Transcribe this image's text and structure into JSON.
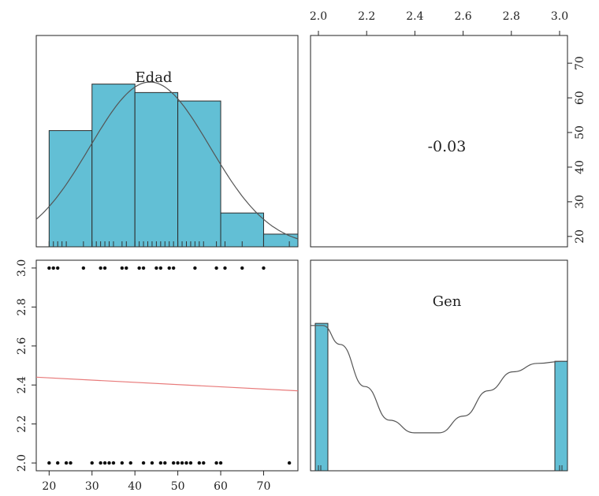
{
  "chart_data": {
    "type": "scatter",
    "title": "",
    "variables": [
      "Edad",
      "Gen"
    ],
    "colors": {
      "bar_fill": "#62bfd5",
      "bar_stroke": "#2b2b2b",
      "density": "#555555",
      "regression": "#e87a7a",
      "points": "#111111"
    },
    "axis_ticks": {
      "edad": [
        "20",
        "30",
        "40",
        "50",
        "60",
        "70"
      ],
      "gen": [
        "2.0",
        "2.2",
        "2.4",
        "2.6",
        "2.8",
        "3.0"
      ],
      "right_ticks": [
        "20",
        "30",
        "40",
        "50",
        "60",
        "70"
      ]
    },
    "diag_edad": {
      "label": "Edad",
      "xlim": [
        17,
        78
      ],
      "bins": [
        {
          "x0": 20,
          "x1": 30,
          "h": 0.55
        },
        {
          "x0": 30,
          "x1": 40,
          "h": 0.77
        },
        {
          "x0": 40,
          "x1": 50,
          "h": 0.73
        },
        {
          "x0": 50,
          "x1": 60,
          "h": 0.69
        },
        {
          "x0": 60,
          "x1": 70,
          "h": 0.16
        },
        {
          "x0": 70,
          "x1": 80,
          "h": 0.06
        }
      ],
      "density_mean": 43.5,
      "density_sd": 14,
      "density_peak": 0.78,
      "rug": [
        20,
        21,
        22,
        23,
        24,
        28,
        30,
        31,
        32,
        33,
        34,
        35,
        37,
        38,
        40,
        41,
        42,
        43,
        44,
        45,
        46,
        47,
        48,
        49,
        50,
        51,
        52,
        53,
        54,
        55,
        56,
        59,
        60,
        61,
        65,
        70,
        76
      ]
    },
    "diag_gen": {
      "label": "Gen",
      "xlim": [
        1.98,
        3.02
      ],
      "bins": [
        {
          "x0": 2.0,
          "x1": 2.05,
          "h": 0.7
        },
        {
          "x0": 2.95,
          "x1": 3.0,
          "h": 0.52
        }
      ],
      "density_curve": [
        [
          1.98,
          0.69
        ],
        [
          2.03,
          0.69
        ],
        [
          2.1,
          0.6
        ],
        [
          2.2,
          0.4
        ],
        [
          2.3,
          0.24
        ],
        [
          2.4,
          0.18
        ],
        [
          2.5,
          0.18
        ],
        [
          2.6,
          0.26
        ],
        [
          2.7,
          0.38
        ],
        [
          2.8,
          0.47
        ],
        [
          2.9,
          0.51
        ],
        [
          3.0,
          0.52
        ]
      ]
    },
    "correlation": "-0.03",
    "scatter": {
      "xlim": [
        17,
        78
      ],
      "ylim": [
        1.96,
        3.04
      ],
      "regression": [
        [
          17,
          2.44
        ],
        [
          78,
          2.37
        ]
      ],
      "points": [
        [
          20,
          3
        ],
        [
          21,
          3
        ],
        [
          22,
          3
        ],
        [
          28,
          3
        ],
        [
          32,
          3
        ],
        [
          33,
          3
        ],
        [
          37,
          3
        ],
        [
          38,
          3
        ],
        [
          41,
          3
        ],
        [
          42,
          3
        ],
        [
          45,
          3
        ],
        [
          46,
          3
        ],
        [
          48,
          3
        ],
        [
          49,
          3
        ],
        [
          54,
          3
        ],
        [
          59,
          3
        ],
        [
          61,
          3
        ],
        [
          65,
          3
        ],
        [
          70,
          3
        ],
        [
          20,
          2
        ],
        [
          22,
          2
        ],
        [
          24,
          2
        ],
        [
          25,
          2
        ],
        [
          30,
          2
        ],
        [
          32,
          2
        ],
        [
          33,
          2
        ],
        [
          34,
          2
        ],
        [
          35,
          2
        ],
        [
          37,
          2
        ],
        [
          39,
          2
        ],
        [
          42,
          2
        ],
        [
          44,
          2
        ],
        [
          46,
          2
        ],
        [
          47,
          2
        ],
        [
          49,
          2
        ],
        [
          50,
          2
        ],
        [
          51,
          2
        ],
        [
          52,
          2
        ],
        [
          53,
          2
        ],
        [
          55,
          2
        ],
        [
          56,
          2
        ],
        [
          59,
          2
        ],
        [
          60,
          2
        ],
        [
          76,
          2
        ]
      ]
    }
  }
}
